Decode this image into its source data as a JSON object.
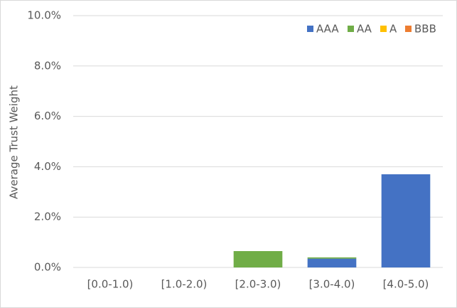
{
  "chart_data": {
    "type": "stacked_bar",
    "y_label": "Average Trust Weight",
    "categories": [
      "[0.0-1.0)",
      "[1.0-2.0)",
      "[2.0-3.0)",
      "[3.0-4.0)",
      "[4.0-5.0)"
    ],
    "series": [
      {
        "name": "AAA",
        "color": "#4472c4",
        "values": [
          0,
          0,
          0,
          0.35,
          3.7
        ]
      },
      {
        "name": "AA",
        "color": "#70ad47",
        "values": [
          0,
          0,
          0.65,
          0.05,
          0
        ]
      },
      {
        "name": "A",
        "color": "#ffc000",
        "values": [
          0,
          0,
          0,
          0,
          0
        ]
      },
      {
        "name": "BBB",
        "color": "#ed7d31",
        "values": [
          0,
          0,
          0,
          0,
          0
        ]
      }
    ],
    "ylim": [
      0,
      10
    ],
    "yticks": [
      {
        "value": 0,
        "label": "0.0%"
      },
      {
        "value": 2,
        "label": "2.0%"
      },
      {
        "value": 4,
        "label": "4.0%"
      },
      {
        "value": 6,
        "label": "6.0%"
      },
      {
        "value": 8,
        "label": "8.0%"
      },
      {
        "value": 10,
        "label": "10.0%"
      }
    ],
    "grid": true,
    "legend": "top-right"
  }
}
